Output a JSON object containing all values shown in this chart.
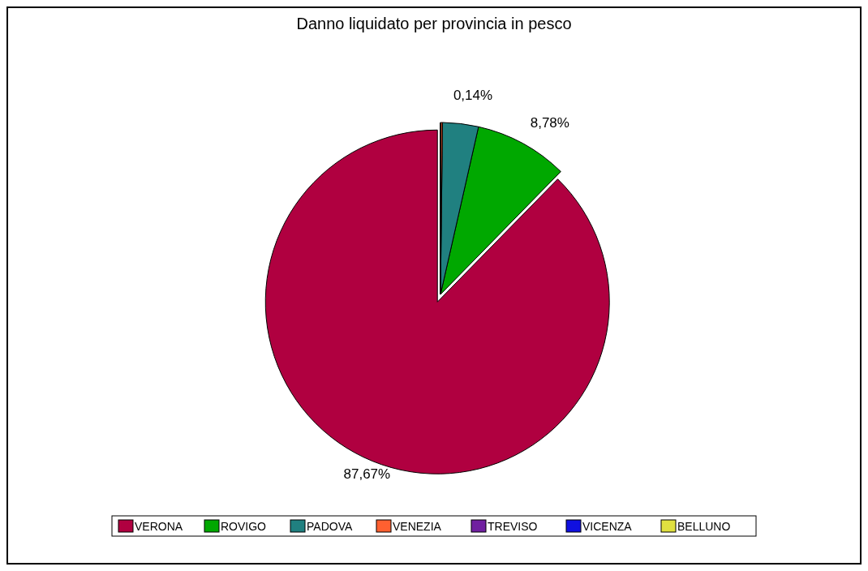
{
  "chart_data": {
    "type": "pie",
    "title": "Danno liquidato per provincia in pesco",
    "categories": [
      "VERONA",
      "ROVIGO",
      "PADOVA",
      "VENEZIA",
      "TREVISO",
      "VICENZA",
      "BELLUNO"
    ],
    "values": [
      87.67,
      8.78,
      3.36,
      0.14,
      0.05,
      0,
      0
    ],
    "colors": [
      "#b00040",
      "#00a800",
      "#208080",
      "#ff6030",
      "#7020a0",
      "#1010e0",
      "#e0e040"
    ],
    "value_labels": [
      "87,67%",
      "8,78%",
      null,
      "0,14%",
      null,
      null,
      null
    ],
    "legend": "bottom"
  }
}
